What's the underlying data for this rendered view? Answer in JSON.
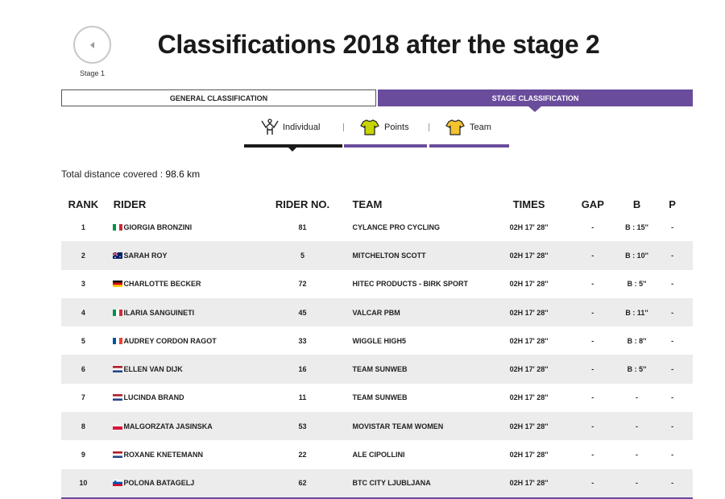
{
  "nav": {
    "back_label": "Stage 1"
  },
  "title": "Classifications 2018 after the stage 2",
  "classification_tabs": [
    {
      "label": "GENERAL CLASSIFICATION",
      "active": false
    },
    {
      "label": "STAGE CLASSIFICATION",
      "active": true
    }
  ],
  "sub_tabs": [
    {
      "label": "Individual",
      "icon": "cyclist-icon",
      "active": true
    },
    {
      "label": "Points",
      "icon": "jersey-icon",
      "active": false
    },
    {
      "label": "Team",
      "icon": "jersey-icon",
      "active": false
    }
  ],
  "distance": {
    "label": "Total distance covered :",
    "value": "98.6 km"
  },
  "columns": {
    "rank": "RANK",
    "rider": "RIDER",
    "rider_no": "RIDER NO.",
    "team": "TEAM",
    "times": "TIMES",
    "gap": "GAP",
    "b": "B",
    "p": "P"
  },
  "colors": {
    "accent": "#6a4c9c",
    "points_jersey": "#c8d400",
    "team_jersey": "#f2c230"
  },
  "rows": [
    {
      "rank": "1",
      "flag": "it",
      "rider": "GIORGIA BRONZINI",
      "no": "81",
      "team": "CYLANCE PRO CYCLING",
      "time": "02H 17' 28''",
      "gap": "-",
      "b": "B : 15''",
      "p": "-"
    },
    {
      "rank": "2",
      "flag": "au",
      "rider": "SARAH ROY",
      "no": "5",
      "team": "MITCHELTON SCOTT",
      "time": "02H 17' 28''",
      "gap": "-",
      "b": "B : 10''",
      "p": "-"
    },
    {
      "rank": "3",
      "flag": "de",
      "rider": "CHARLOTTE BECKER",
      "no": "72",
      "team": "HITEC PRODUCTS - BIRK SPORT",
      "time": "02H 17' 28''",
      "gap": "-",
      "b": "B : 5''",
      "p": "-"
    },
    {
      "rank": "4",
      "flag": "it",
      "rider": "ILARIA SANGUINETI",
      "no": "45",
      "team": "VALCAR PBM",
      "time": "02H 17' 28''",
      "gap": "-",
      "b": "B : 11''",
      "p": "-"
    },
    {
      "rank": "5",
      "flag": "fr",
      "rider": "AUDREY CORDON RAGOT",
      "no": "33",
      "team": "WIGGLE HIGH5",
      "time": "02H 17' 28''",
      "gap": "-",
      "b": "B : 8''",
      "p": "-"
    },
    {
      "rank": "6",
      "flag": "nl",
      "rider": "ELLEN VAN DIJK",
      "no": "16",
      "team": "TEAM SUNWEB",
      "time": "02H 17' 28''",
      "gap": "-",
      "b": "B : 5''",
      "p": "-"
    },
    {
      "rank": "7",
      "flag": "nl",
      "rider": "LUCINDA BRAND",
      "no": "11",
      "team": "TEAM SUNWEB",
      "time": "02H 17' 28''",
      "gap": "-",
      "b": "-",
      "p": "-"
    },
    {
      "rank": "8",
      "flag": "pl",
      "rider": "MALGORZATA JASINSKA",
      "no": "53",
      "team": "MOVISTAR TEAM WOMEN",
      "time": "02H 17' 28''",
      "gap": "-",
      "b": "-",
      "p": "-"
    },
    {
      "rank": "9",
      "flag": "nl",
      "rider": "ROXANE KNETEMANN",
      "no": "22",
      "team": "ALE CIPOLLINI",
      "time": "02H 17' 28''",
      "gap": "-",
      "b": "-",
      "p": "-"
    },
    {
      "rank": "10",
      "flag": "si",
      "rider": "POLONA BATAGELJ",
      "no": "62",
      "team": "BTC CITY LJUBLJANA",
      "time": "02H 17' 28''",
      "gap": "-",
      "b": "-",
      "p": "-"
    }
  ]
}
